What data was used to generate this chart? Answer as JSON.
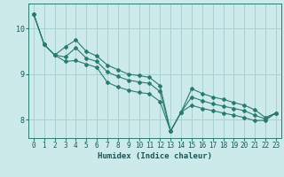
{
  "xlabel": "Humidex (Indice chaleur)",
  "ylabel": "",
  "background_color": "#cdeaea",
  "grid_color": "#aad0d0",
  "line_color": "#2a7a70",
  "xlim": [
    -0.5,
    23.5
  ],
  "ylim": [
    7.6,
    10.55
  ],
  "yticks": [
    8,
    9,
    10
  ],
  "xticks": [
    0,
    1,
    2,
    3,
    4,
    5,
    6,
    7,
    8,
    9,
    10,
    11,
    12,
    13,
    14,
    15,
    16,
    17,
    18,
    19,
    20,
    21,
    22,
    23
  ],
  "series": [
    [
      10.32,
      9.65,
      9.42,
      9.38,
      9.58,
      9.35,
      9.28,
      9.05,
      8.95,
      8.87,
      8.83,
      8.8,
      8.62,
      7.75,
      8.17,
      8.5,
      8.42,
      8.35,
      8.3,
      8.25,
      8.2,
      8.1,
      8.02,
      8.15
    ],
    [
      10.32,
      9.65,
      9.42,
      9.28,
      9.3,
      9.22,
      9.15,
      8.82,
      8.72,
      8.65,
      8.6,
      8.57,
      8.4,
      7.75,
      8.17,
      8.68,
      8.58,
      8.5,
      8.45,
      8.38,
      8.32,
      8.22,
      8.05,
      8.15
    ],
    [
      10.32,
      9.65,
      9.42,
      9.6,
      9.75,
      9.5,
      9.4,
      9.2,
      9.1,
      9.0,
      8.97,
      8.93,
      8.75,
      7.75,
      8.17,
      8.32,
      8.25,
      8.2,
      8.15,
      8.1,
      8.05,
      7.98,
      7.99,
      8.15
    ]
  ],
  "tick_fontsize": 5.5,
  "xlabel_fontsize": 6.5,
  "ylabel_fontsize": 6.5
}
